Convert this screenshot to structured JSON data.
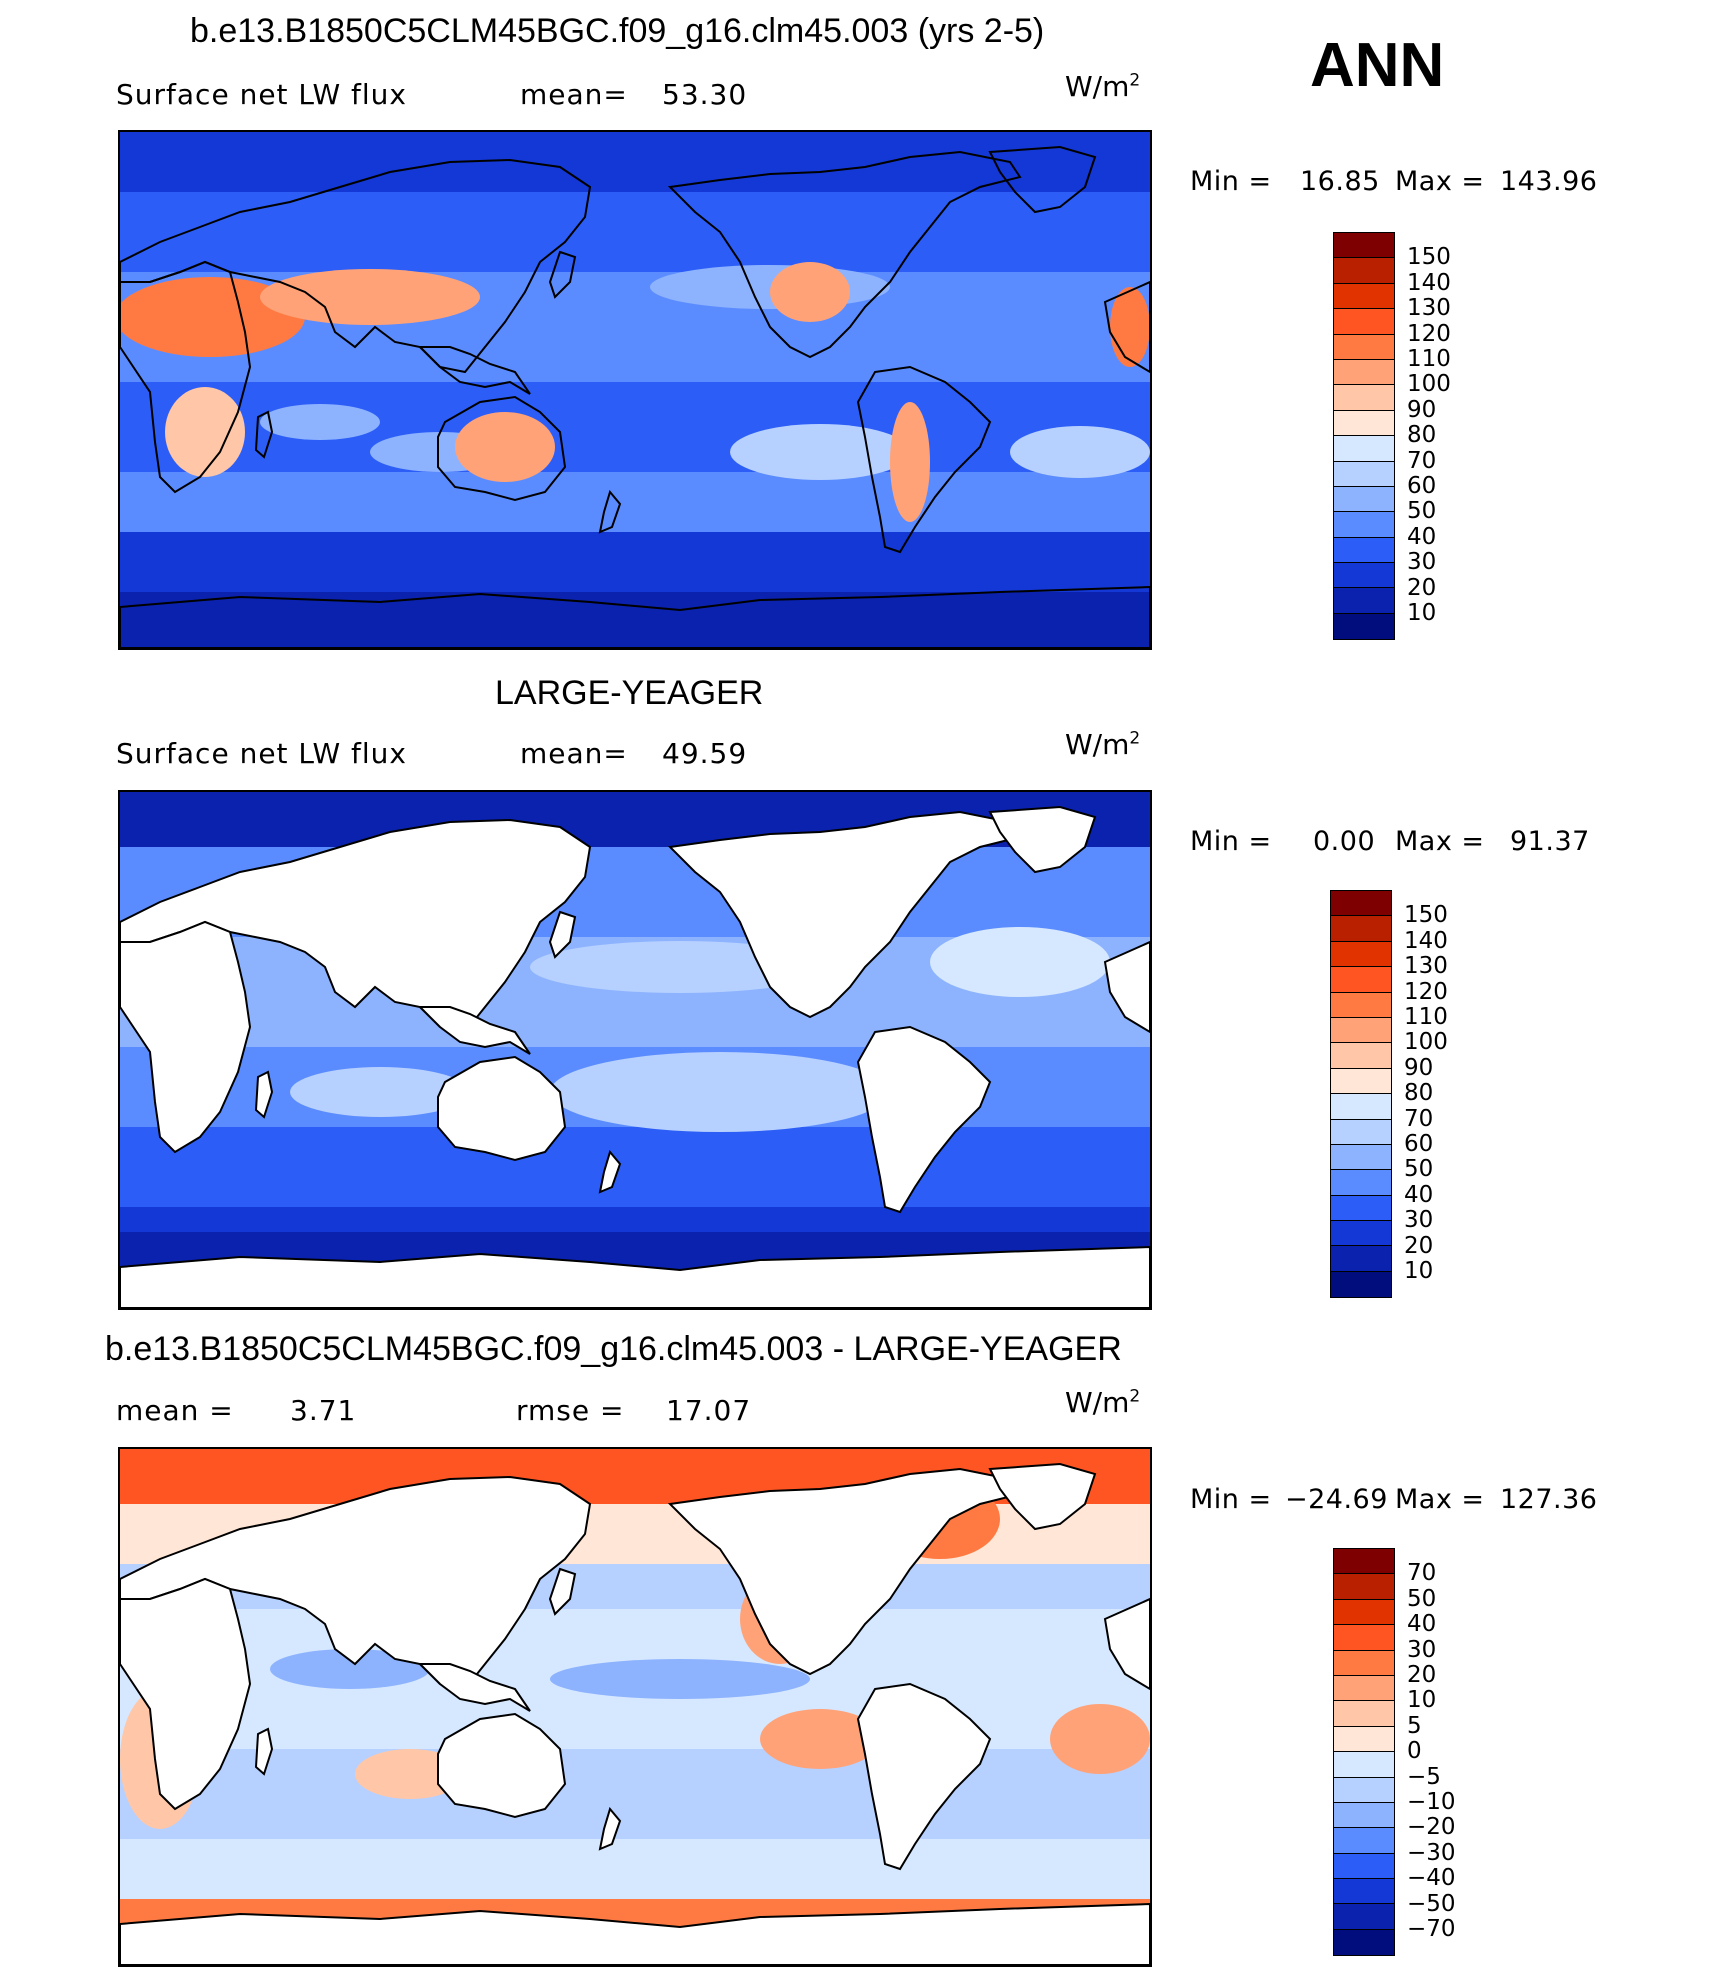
{
  "season": "ANN",
  "units_base": "W/m",
  "units_exp": "2",
  "panels": [
    {
      "title": "b.e13.B1850C5CLM45BGC.f09_g16.clm45.003 (yrs 2-5)",
      "variable": "Surface net LW flux",
      "mean_label": "mean=",
      "mean_value": "53.30",
      "min_label": "Min =",
      "min_value": "16.85",
      "max_label": "Max =",
      "max_value": "143.96",
      "land_masked": false,
      "colorbar": {
        "labels": [
          "150",
          "140",
          "130",
          "120",
          "110",
          "100",
          "90",
          "80",
          "70",
          "60",
          "50",
          "40",
          "30",
          "20",
          "10"
        ],
        "colors": [
          "#7e0000",
          "#b82000",
          "#e03300",
          "#ff5522",
          "#ff7a42",
          "#ffa278",
          "#ffc7a7",
          "#ffe6d6",
          "#d6e8ff",
          "#b6d0ff",
          "#8db3ff",
          "#5b8cff",
          "#2c5ef7",
          "#1338d6",
          "#0a22ad",
          "#010d7c"
        ]
      }
    },
    {
      "title": "LARGE-YEAGER",
      "variable": "Surface net LW flux",
      "mean_label": "mean=",
      "mean_value": "49.59",
      "min_label": "Min =",
      "min_value": "0.00",
      "max_label": "Max =",
      "max_value": "91.37",
      "land_masked": true,
      "colorbar": {
        "labels": [
          "150",
          "140",
          "130",
          "120",
          "110",
          "100",
          "90",
          "80",
          "70",
          "60",
          "50",
          "40",
          "30",
          "20",
          "10"
        ],
        "colors": [
          "#7e0000",
          "#b82000",
          "#e03300",
          "#ff5522",
          "#ff7a42",
          "#ffa278",
          "#ffc7a7",
          "#ffe6d6",
          "#d6e8ff",
          "#b6d0ff",
          "#8db3ff",
          "#5b8cff",
          "#2c5ef7",
          "#1338d6",
          "#0a22ad",
          "#010d7c"
        ]
      }
    },
    {
      "title": "b.e13.B1850C5CLM45BGC.f09_g16.clm45.003 - LARGE-YEAGER",
      "mean_label": "mean =",
      "mean_value": "3.71",
      "rmse_label": "rmse =",
      "rmse_value": "17.07",
      "min_label": "Min =",
      "min_value": "−24.69",
      "max_label": "Max =",
      "max_value": "127.36",
      "land_masked": true,
      "colorbar": {
        "labels": [
          "70",
          "50",
          "40",
          "30",
          "20",
          "10",
          "5",
          "0",
          "−5",
          "−10",
          "−20",
          "−30",
          "−40",
          "−50",
          "−70"
        ],
        "colors": [
          "#7e0000",
          "#b82000",
          "#e03300",
          "#ff5522",
          "#ff7a42",
          "#ffa278",
          "#ffc7a7",
          "#ffe6d6",
          "#d6e8ff",
          "#b6d0ff",
          "#8db3ff",
          "#5b8cff",
          "#2c5ef7",
          "#1338d6",
          "#0a22ad",
          "#010d7c"
        ]
      }
    }
  ]
}
